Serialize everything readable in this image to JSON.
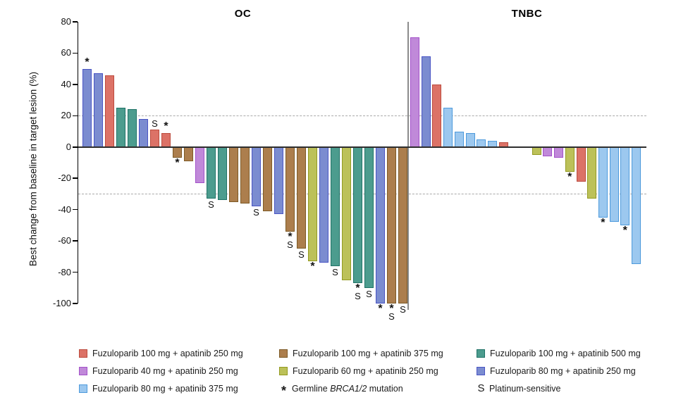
{
  "chart_data": {
    "type": "bar",
    "ylabel": "Best change from baseline in target lesion (%)",
    "ylim": [
      -100,
      80
    ],
    "yticks": [
      80,
      60,
      40,
      20,
      0,
      -20,
      -40,
      -60,
      -80,
      -100
    ],
    "reference_lines": [
      20,
      -30
    ],
    "grid": false,
    "groups": {
      "red": {
        "label": "Fuzuloparib 100 mg + apatinib 250 mg",
        "fill": "#DC7267",
        "border": "#BC4B3E"
      },
      "brown": {
        "label": "Fuzuloparib 100 mg + apatinib 375 mg",
        "fill": "#AC7E4D",
        "border": "#7D5A26"
      },
      "teal": {
        "label": "Fuzuloparib 100 mg + apatinib 500 mg",
        "fill": "#4C9C8E",
        "border": "#1F7266"
      },
      "purple": {
        "label": "Fuzuloparib 40 mg + apatinib 250 mg",
        "fill": "#C089D9",
        "border": "#A351C9"
      },
      "olive": {
        "label": "Fuzuloparib 60 mg + apatinib 250 mg",
        "fill": "#BCC159",
        "border": "#939A20"
      },
      "slateblue": {
        "label": "Fuzuloparib 80 mg + apatinib 250 mg",
        "fill": "#7B8CD0",
        "border": "#4A55C4"
      },
      "lightblue": {
        "label": "Fuzuloparib 80 mg + apatinib 375 mg",
        "fill": "#9CC8EF",
        "border": "#4D9ADC"
      }
    },
    "symbols": [
      {
        "symbol": "*",
        "label": "Germline BRCA1/2 mutation",
        "italic": "BRCA1/2"
      },
      {
        "symbol": "S",
        "label": "Platinum-sensitive",
        "italic": ""
      }
    ],
    "panels": [
      {
        "title": "OC",
        "bars": [
          {
            "value": 50,
            "group": "slateblue",
            "marks": [
              "*"
            ]
          },
          {
            "value": 47,
            "group": "slateblue",
            "marks": []
          },
          {
            "value": 46,
            "group": "red",
            "marks": []
          },
          {
            "value": 25,
            "group": "teal",
            "marks": []
          },
          {
            "value": 24,
            "group": "teal",
            "marks": []
          },
          {
            "value": 18,
            "group": "slateblue",
            "marks": []
          },
          {
            "value": 11,
            "group": "red",
            "marks": [
              "S"
            ]
          },
          {
            "value": 9,
            "group": "red",
            "marks": [
              "*"
            ]
          },
          {
            "value": -7,
            "group": "brown",
            "marks": [
              "*"
            ]
          },
          {
            "value": -9,
            "group": "brown",
            "marks": []
          },
          {
            "value": -23,
            "group": "purple",
            "marks": []
          },
          {
            "value": -33,
            "group": "teal",
            "marks": [
              "S"
            ]
          },
          {
            "value": -34,
            "group": "teal",
            "marks": []
          },
          {
            "value": -35,
            "group": "brown",
            "marks": []
          },
          {
            "value": -36,
            "group": "brown",
            "marks": []
          },
          {
            "value": -38,
            "group": "slateblue",
            "marks": [
              "S"
            ]
          },
          {
            "value": -41,
            "group": "brown",
            "marks": []
          },
          {
            "value": -43,
            "group": "slateblue",
            "marks": []
          },
          {
            "value": -54,
            "group": "brown",
            "marks": [
              "*",
              "S"
            ]
          },
          {
            "value": -65,
            "group": "brown",
            "marks": [
              "S"
            ]
          },
          {
            "value": -73,
            "group": "olive",
            "marks": [
              "*"
            ]
          },
          {
            "value": -74,
            "group": "slateblue",
            "marks": []
          },
          {
            "value": -76,
            "group": "teal",
            "marks": [
              "S"
            ]
          },
          {
            "value": -85,
            "group": "olive",
            "marks": []
          },
          {
            "value": -87,
            "group": "teal",
            "marks": [
              "*",
              "S"
            ]
          },
          {
            "value": -90,
            "group": "teal",
            "marks": [
              "S"
            ]
          },
          {
            "value": -100,
            "group": "slateblue",
            "marks": [
              "*"
            ]
          },
          {
            "value": -100,
            "group": "brown",
            "marks": [
              "*",
              "S"
            ]
          },
          {
            "value": -100,
            "group": "brown",
            "marks": [
              "S"
            ]
          }
        ]
      },
      {
        "title": "TNBC",
        "bars": [
          {
            "value": 70,
            "group": "purple",
            "marks": []
          },
          {
            "value": 58,
            "group": "slateblue",
            "marks": []
          },
          {
            "value": 40,
            "group": "red",
            "marks": []
          },
          {
            "value": 25,
            "group": "lightblue",
            "marks": []
          },
          {
            "value": 10,
            "group": "lightblue",
            "marks": []
          },
          {
            "value": 9,
            "group": "lightblue",
            "marks": []
          },
          {
            "value": 5,
            "group": "lightblue",
            "marks": []
          },
          {
            "value": 4,
            "group": "lightblue",
            "marks": []
          },
          {
            "value": 3,
            "group": "red",
            "marks": []
          },
          {
            "value": 0,
            "group": null,
            "marks": []
          },
          {
            "value": 0,
            "group": null,
            "marks": []
          },
          {
            "value": -5,
            "group": "olive",
            "marks": []
          },
          {
            "value": -6,
            "group": "purple",
            "marks": []
          },
          {
            "value": -7,
            "group": "purple",
            "marks": []
          },
          {
            "value": -16,
            "group": "olive",
            "marks": [
              "*"
            ]
          },
          {
            "value": -22,
            "group": "red",
            "marks": []
          },
          {
            "value": -33,
            "group": "olive",
            "marks": []
          },
          {
            "value": -45,
            "group": "lightblue",
            "marks": [
              "*"
            ]
          },
          {
            "value": -48,
            "group": "lightblue",
            "marks": []
          },
          {
            "value": -50,
            "group": "lightblue",
            "marks": [
              "*"
            ]
          },
          {
            "value": -75,
            "group": "lightblue",
            "marks": []
          }
        ]
      }
    ]
  },
  "legend_layout": {
    "columns": [
      [
        "group:red",
        "group:purple",
        "group:lightblue"
      ],
      [
        "group:brown",
        "group:olive",
        "symbol:*"
      ],
      [
        "group:teal",
        "group:slateblue",
        "symbol:S"
      ]
    ]
  }
}
